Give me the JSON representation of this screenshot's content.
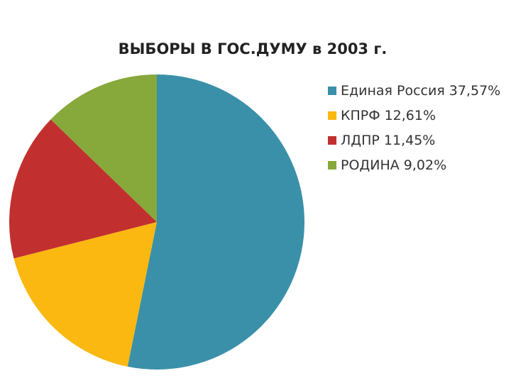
{
  "chart_data": {
    "type": "pie",
    "title": "ВЫБОРЫ В ГОС.ДУМУ в 2003 г.",
    "categories": [
      "Единая Россия",
      "КПРФ",
      "ЛДПР",
      "РОДИНА"
    ],
    "values": [
      37.57,
      12.61,
      11.45,
      9.02
    ],
    "value_labels": [
      "37,57%",
      "12,61%",
      "11,45%",
      "9,02%"
    ],
    "colors": [
      "#3a90a9",
      "#fbb810",
      "#c1302f",
      "#87a83a"
    ],
    "legend": "right"
  }
}
